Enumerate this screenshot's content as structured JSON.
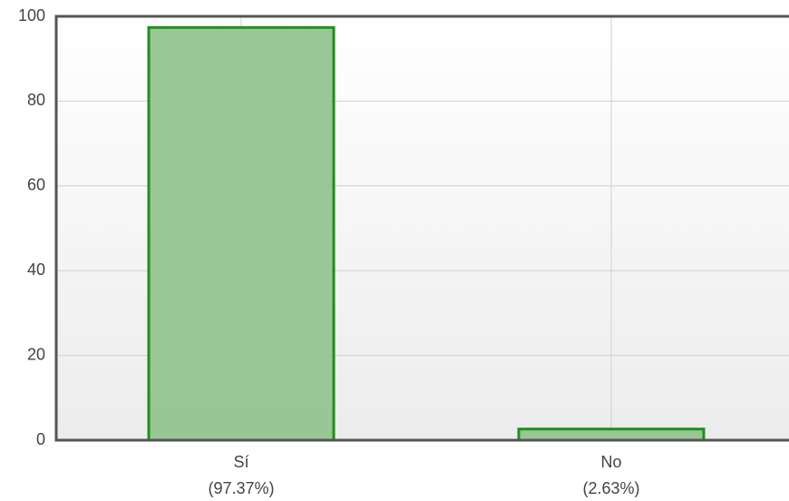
{
  "chart_data": {
    "type": "bar",
    "categories": [
      "Sí",
      "No"
    ],
    "values": [
      97.37,
      2.63
    ],
    "value_labels": [
      "(97.37%)",
      "(2.63%)"
    ],
    "color": "#93c48f",
    "edge_color": "#1f8f1f",
    "ylim": [
      0,
      100
    ],
    "yticks": [
      0,
      20,
      40,
      60,
      80,
      100
    ],
    "grid": true
  }
}
